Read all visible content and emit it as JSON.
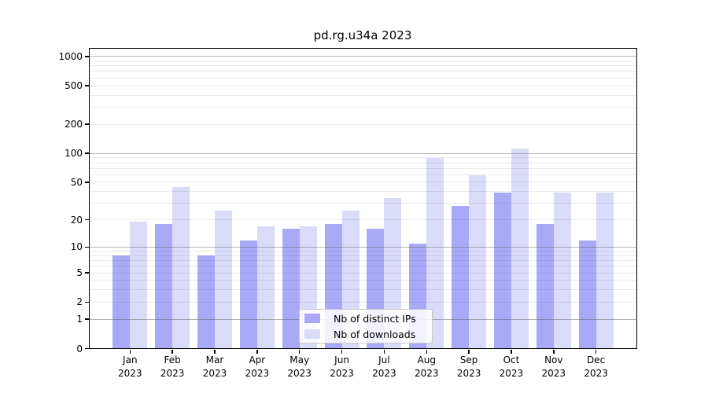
{
  "chart_data": {
    "type": "bar",
    "title": "pd.rg.u34a 2023",
    "categories": [
      "Jan",
      "Feb",
      "Mar",
      "Apr",
      "May",
      "Jun",
      "Jul",
      "Aug",
      "Sep",
      "Oct",
      "Nov",
      "Dec"
    ],
    "x_tick_year": "2023",
    "series": [
      {
        "name": "Nb of distinct IPs",
        "color": "#a9a9f8",
        "values": [
          8,
          18,
          8,
          12,
          16,
          18,
          16,
          11,
          28,
          39,
          18,
          12
        ]
      },
      {
        "name": "Nb of downloads",
        "color": "#dadaf9",
        "values": [
          19,
          45,
          25,
          17,
          17,
          25,
          34,
          89,
          59,
          113,
          39,
          39
        ]
      }
    ],
    "xlabel": "",
    "ylabel": "",
    "yscale": "log1p",
    "ylim": [
      0,
      1190
    ],
    "y_ticks": [
      0,
      1,
      2,
      5,
      10,
      20,
      50,
      100,
      200,
      500,
      1000
    ],
    "grid": {
      "major_lines": [
        1,
        10,
        100,
        1000
      ],
      "minor_mantissas": [
        2,
        3,
        4,
        5,
        6,
        7,
        8,
        9
      ],
      "major_color": "#b3b3b3",
      "minor_color": "#ececec"
    },
    "legend": {
      "position": "lower center",
      "entries": [
        "Nb of distinct IPs",
        "Nb of downloads"
      ]
    },
    "frame_color": "#000000",
    "background_color": "#ffffff"
  }
}
